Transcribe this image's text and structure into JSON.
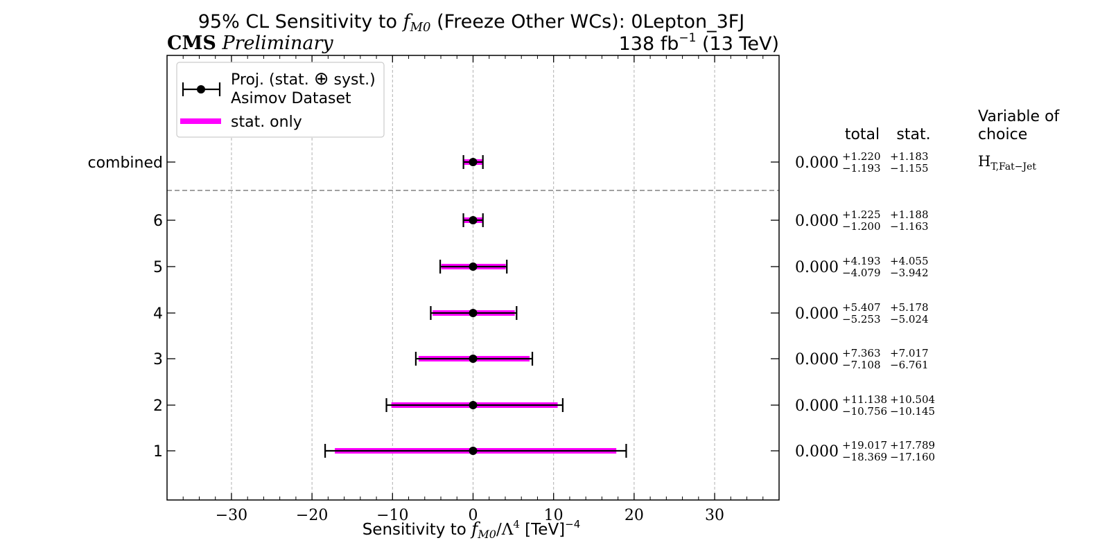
{
  "chart_data": {
    "type": "scatter",
    "title_prefix": "95% CL Sensitivity to ",
    "title_var": "f",
    "title_var_sub": "M0",
    "title_suffix": " (Freeze Other WCs): 0Lepton_3FJ",
    "experiment": "CMS",
    "status": "Preliminary",
    "lumi_value": "138 fb",
    "lumi_exp": "−1",
    "lumi_energy": " (13 TeV)",
    "xlabel": {
      "prefix": "Sensitivity to ",
      "var": "f",
      "var_sub": "M0",
      "mid": "/Λ",
      "mid_sup": "4",
      "unit": " [TeV]",
      "unit_sup": "−4"
    },
    "xlim": [
      -38,
      38
    ],
    "x_ticks": [
      -30,
      -20,
      -10,
      0,
      10,
      20,
      30
    ],
    "x_tick_labels": [
      "−30",
      "−20",
      "−10",
      "0",
      "10",
      "20",
      "30"
    ],
    "x_minor_step": 2,
    "grid": "vertical dashed at major x ticks",
    "legend": {
      "placement": "top-left",
      "entries": [
        {
          "line1": "Proj. (stat. ",
          "oplus": "⊕",
          "line1_end": " syst.)",
          "line2": "Asimov Dataset",
          "marker": "errorbar"
        },
        {
          "label": "stat. only",
          "marker": "band"
        }
      ]
    },
    "table_headers": {
      "total": "total",
      "stat": "stat.",
      "variable": "Variable of",
      "variable2": "choice"
    },
    "colors": {
      "stat_band": "#ff00ff",
      "errorbar": "#000000",
      "separator": "#808080",
      "grid": "#b0b0b0"
    },
    "series": [
      {
        "label": "combined",
        "central": 0.0,
        "central_label": "0.000",
        "total_up": 1.22,
        "total_down": -1.193,
        "stat_up": 1.183,
        "stat_down": -1.155,
        "total_up_label": "+1.220",
        "total_down_label": "−1.193",
        "stat_up_label": "+1.183",
        "stat_down_label": "−1.155"
      },
      {
        "label": "6",
        "central": 0.0,
        "central_label": "0.000",
        "total_up": 1.225,
        "total_down": -1.2,
        "stat_up": 1.188,
        "stat_down": -1.163,
        "total_up_label": "+1.225",
        "total_down_label": "−1.200",
        "stat_up_label": "+1.188",
        "stat_down_label": "−1.163"
      },
      {
        "label": "5",
        "central": 0.0,
        "central_label": "0.000",
        "total_up": 4.193,
        "total_down": -4.079,
        "stat_up": 4.055,
        "stat_down": -3.942,
        "total_up_label": "+4.193",
        "total_down_label": "−4.079",
        "stat_up_label": "+4.055",
        "stat_down_label": "−3.942"
      },
      {
        "label": "4",
        "central": 0.0,
        "central_label": "0.000",
        "total_up": 5.407,
        "total_down": -5.253,
        "stat_up": 5.178,
        "stat_down": -5.024,
        "total_up_label": "+5.407",
        "total_down_label": "−5.253",
        "stat_up_label": "+5.178",
        "stat_down_label": "−5.024"
      },
      {
        "label": "3",
        "central": 0.0,
        "central_label": "0.000",
        "total_up": 7.363,
        "total_down": -7.108,
        "stat_up": 7.017,
        "stat_down": -6.761,
        "total_up_label": "+7.363",
        "total_down_label": "−7.108",
        "stat_up_label": "+7.017",
        "stat_down_label": "−6.761"
      },
      {
        "label": "2",
        "central": 0.0,
        "central_label": "0.000",
        "total_up": 11.138,
        "total_down": -10.756,
        "stat_up": 10.504,
        "stat_down": -10.145,
        "total_up_label": "+11.138",
        "total_down_label": "−10.756",
        "stat_up_label": "+10.504",
        "stat_down_label": "−10.145"
      },
      {
        "label": "1",
        "central": 0.0,
        "central_label": "0.000",
        "total_up": 19.017,
        "total_down": -18.369,
        "stat_up": 17.789,
        "stat_down": -17.16,
        "total_up_label": "+19.017",
        "total_down_label": "−18.369",
        "stat_up_label": "+17.789",
        "stat_down_label": "−17.160"
      }
    ],
    "variable_choice": {
      "main": "H",
      "sub": "T,Fat−Jet"
    }
  }
}
